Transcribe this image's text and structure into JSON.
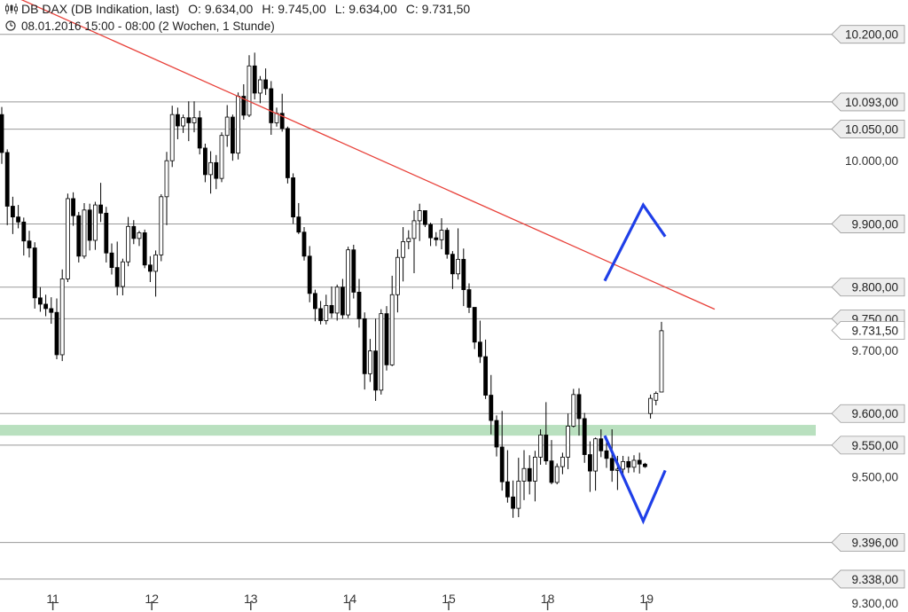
{
  "header": {
    "instrument": "DB DAX (DB Indikation, last)",
    "open": "O: 9.634,00",
    "high": "H: 9.745,00",
    "low": "L: 9.634,00",
    "close": "C: 9.731,50",
    "period": "08.01.2016 15:00 - 08:00 (2 Wochen, 1 Stunde)"
  },
  "chart_data": {
    "type": "candlestick",
    "ylim": [
      9300,
      10215
    ],
    "x_tick_labels": [
      "11",
      "12",
      "13",
      "14",
      "15",
      "18",
      "19"
    ],
    "y_axis_labels": [
      "10.000,00",
      "9.700,00",
      "9.500,00",
      "9.300,00"
    ],
    "levels": [
      {
        "value": 10200,
        "label": "10.200,00"
      },
      {
        "value": 10093,
        "label": "10.093,00"
      },
      {
        "value": 10050,
        "label": "10.050,00"
      },
      {
        "value": 9900,
        "label": "9.900,00"
      },
      {
        "value": 9800,
        "label": "9.800,00"
      },
      {
        "value": 9750,
        "label": "9.750,00"
      },
      {
        "value": 9600,
        "label": "9.600,00"
      },
      {
        "value": 9550,
        "label": "9.550,00"
      },
      {
        "value": 9396,
        "label": "9.396,00"
      },
      {
        "value": 9338,
        "label": "9.338,00"
      }
    ],
    "last_price": {
      "value": 9731.5,
      "label": "9.731,50"
    },
    "support_zone": {
      "from": 9565,
      "to": 9582,
      "color": "#b9e0bf"
    },
    "trendline": {
      "from": [
        0,
        10270
      ],
      "to": [
        130,
        9765
      ],
      "color": "#e8413a"
    },
    "colors": {
      "grid": "#999999",
      "candle": "#000000",
      "scenario": "#1f3fe8",
      "label_bg": "#eeeeee"
    },
    "scenarios": [
      {
        "name": "up",
        "points": [
          [
            110,
            9810
          ],
          [
            117,
            9930
          ],
          [
            121,
            9880
          ]
        ]
      },
      {
        "name": "down",
        "points": [
          [
            110,
            9565
          ],
          [
            117,
            9430
          ],
          [
            121,
            9510
          ]
        ]
      }
    ],
    "candles": [
      [
        10073,
        10085,
        9995,
        10013
      ],
      [
        10013,
        10018,
        9898,
        9928
      ],
      [
        9928,
        9943,
        9884,
        9911
      ],
      [
        9911,
        9930,
        9893,
        9903
      ],
      [
        9903,
        9910,
        9850,
        9873
      ],
      [
        9873,
        9889,
        9847,
        9862
      ],
      [
        9862,
        9871,
        9766,
        9783
      ],
      [
        9783,
        9800,
        9761,
        9773
      ],
      [
        9773,
        9788,
        9754,
        9766
      ],
      [
        9766,
        9784,
        9742,
        9760
      ],
      [
        9760,
        9782,
        9686,
        9693
      ],
      [
        9693,
        9828,
        9683,
        9813
      ],
      [
        9813,
        9948,
        9808,
        9940
      ],
      [
        9940,
        9950,
        9897,
        9913
      ],
      [
        9913,
        9919,
        9839,
        9849
      ],
      [
        9849,
        9933,
        9845,
        9922
      ],
      [
        9922,
        9932,
        9858,
        9874
      ],
      [
        9874,
        9935,
        9859,
        9930
      ],
      [
        9930,
        9965,
        9903,
        9917
      ],
      [
        9917,
        9927,
        9839,
        9854
      ],
      [
        9854,
        9869,
        9820,
        9831
      ],
      [
        9831,
        9872,
        9787,
        9801
      ],
      [
        9801,
        9845,
        9787,
        9840
      ],
      [
        9840,
        9911,
        9833,
        9896
      ],
      [
        9896,
        9906,
        9868,
        9877
      ],
      [
        9877,
        9889,
        9865,
        9886
      ],
      [
        9886,
        9891,
        9830,
        9835
      ],
      [
        9835,
        9849,
        9808,
        9825
      ],
      [
        9825,
        9858,
        9785,
        9851
      ],
      [
        9851,
        9947,
        9841,
        9943
      ],
      [
        9943,
        10014,
        9898,
        10000
      ],
      [
        10000,
        10087,
        9990,
        10073
      ],
      [
        10073,
        10084,
        10034,
        10055
      ],
      [
        10055,
        10073,
        10044,
        10068
      ],
      [
        10068,
        10094,
        10031,
        10060
      ],
      [
        10060,
        10094,
        10045,
        10068
      ],
      [
        10068,
        10079,
        10010,
        10020
      ],
      [
        10020,
        10027,
        9966,
        9978
      ],
      [
        9978,
        10015,
        9948,
        9997
      ],
      [
        9997,
        10009,
        9955,
        9972
      ],
      [
        9972,
        10045,
        9966,
        10040
      ],
      [
        10040,
        10088,
        10022,
        10069
      ],
      [
        10069,
        10073,
        10000,
        10012
      ],
      [
        10012,
        10108,
        10002,
        10102
      ],
      [
        10102,
        10121,
        10065,
        10072
      ],
      [
        10072,
        10167,
        10069,
        10150
      ],
      [
        10150,
        10171,
        10097,
        10107
      ],
      [
        10107,
        10134,
        10091,
        10128
      ],
      [
        10128,
        10146,
        10104,
        10114
      ],
      [
        10114,
        10126,
        10041,
        10060
      ],
      [
        10060,
        10084,
        10054,
        10075
      ],
      [
        10075,
        10106,
        10046,
        10051
      ],
      [
        10051,
        10054,
        9964,
        9973
      ],
      [
        9973,
        9980,
        9900,
        9911
      ],
      [
        9911,
        9933,
        9884,
        9887
      ],
      [
        9887,
        9895,
        9842,
        9849
      ],
      [
        9849,
        9865,
        9776,
        9790
      ],
      [
        9790,
        9796,
        9746,
        9766
      ],
      [
        9766,
        9778,
        9741,
        9747
      ],
      [
        9747,
        9788,
        9741,
        9771
      ],
      [
        9771,
        9801,
        9751,
        9759
      ],
      [
        9759,
        9804,
        9747,
        9800
      ],
      [
        9800,
        9813,
        9750,
        9756
      ],
      [
        9756,
        9864,
        9751,
        9859
      ],
      [
        9859,
        9867,
        9782,
        9792
      ],
      [
        9792,
        9813,
        9736,
        9750
      ],
      [
        9750,
        9760,
        9638,
        9663
      ],
      [
        9663,
        9718,
        9650,
        9699
      ],
      [
        9699,
        9750,
        9620,
        9637
      ],
      [
        9637,
        9765,
        9630,
        9758
      ],
      [
        9758,
        9770,
        9668,
        9677
      ],
      [
        9677,
        9818,
        9675,
        9788
      ],
      [
        9788,
        9860,
        9760,
        9847
      ],
      [
        9847,
        9895,
        9809,
        9872
      ],
      [
        9872,
        9890,
        9860,
        9877
      ],
      [
        9877,
        9921,
        9822,
        9905
      ],
      [
        9905,
        9932,
        9873,
        9921
      ],
      [
        9921,
        9921,
        9895,
        9899
      ],
      [
        9899,
        9902,
        9865,
        9878
      ],
      [
        9878,
        9887,
        9865,
        9875
      ],
      [
        9875,
        9909,
        9860,
        9890
      ],
      [
        9890,
        9894,
        9845,
        9852
      ],
      [
        9852,
        9857,
        9797,
        9821
      ],
      [
        9821,
        9893,
        9812,
        9844
      ],
      [
        9844,
        9861,
        9770,
        9796
      ],
      [
        9796,
        9806,
        9759,
        9768
      ],
      [
        9768,
        9768,
        9702,
        9713
      ],
      [
        9713,
        9747,
        9680,
        9690
      ],
      [
        9690,
        9717,
        9623,
        9629
      ],
      [
        9629,
        9661,
        9567,
        9589
      ],
      [
        9589,
        9597,
        9532,
        9547
      ],
      [
        9547,
        9604,
        9478,
        9492
      ],
      [
        9492,
        9542,
        9459,
        9468
      ],
      [
        9468,
        9494,
        9435,
        9450
      ],
      [
        9450,
        9530,
        9436,
        9493
      ],
      [
        9493,
        9542,
        9463,
        9513
      ],
      [
        9513,
        9534,
        9472,
        9493
      ],
      [
        9493,
        9541,
        9461,
        9531
      ],
      [
        9531,
        9575,
        9519,
        9566
      ],
      [
        9566,
        9618,
        9519,
        9525
      ],
      [
        9525,
        9558,
        9488,
        9491
      ],
      [
        9491,
        9521,
        9488,
        9516
      ],
      [
        9516,
        9538,
        9504,
        9531
      ],
      [
        9531,
        9600,
        9512,
        9580
      ],
      [
        9580,
        9639,
        9578,
        9630
      ],
      [
        9630,
        9640,
        9565,
        9592
      ],
      [
        9592,
        9601,
        9522,
        9535
      ],
      [
        9535,
        9556,
        9476,
        9509
      ],
      [
        9509,
        9562,
        9478,
        9560
      ],
      [
        9560,
        9575,
        9531,
        9541
      ],
      [
        9541,
        9563,
        9514,
        9529
      ],
      [
        9529,
        9575,
        9492,
        9510
      ],
      [
        9510,
        9533,
        9479,
        9512
      ],
      [
        9512,
        9533,
        9503,
        9524
      ],
      [
        9524,
        9532,
        9506,
        9515
      ],
      [
        9515,
        9534,
        9507,
        9526
      ],
      [
        9526,
        9538,
        9505,
        9520
      ],
      [
        9520,
        9522,
        9514,
        9516
      ],
      [
        9600,
        9630,
        9592,
        9624
      ],
      [
        9621,
        9635,
        9613,
        9632
      ],
      [
        9634,
        9745,
        9634,
        9731
      ]
    ]
  }
}
